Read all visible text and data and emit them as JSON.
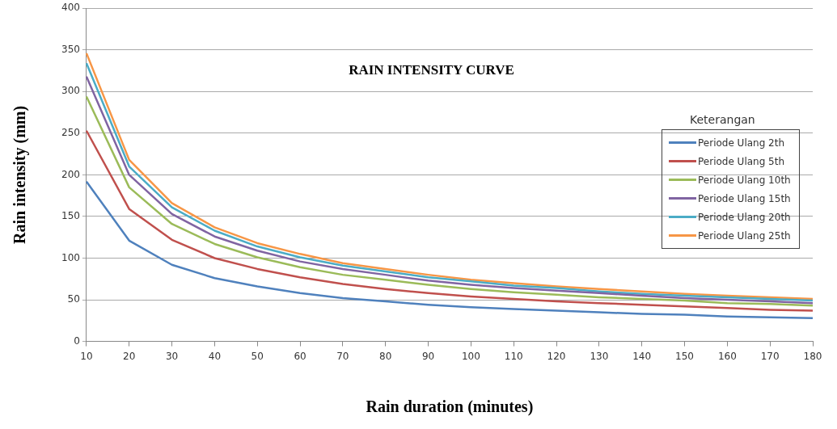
{
  "chart_data": {
    "type": "line",
    "title": "RAIN INTENSITY CURVE",
    "xlabel": "Rain duration (minutes)",
    "ylabel": "Rain intensity (mm)",
    "legend_title": "Keterangan",
    "legend": "right",
    "grid": "y",
    "marker": "none",
    "line_style": "solid",
    "categories": [
      "10",
      "20",
      "30",
      "40",
      "50",
      "60",
      "70",
      "80",
      "90",
      "100",
      "110",
      "120",
      "130",
      "140",
      "150",
      "160",
      "170",
      "180"
    ],
    "ylim": [
      0,
      400
    ],
    "yticks": [
      0,
      50,
      100,
      150,
      200,
      250,
      300,
      350,
      400
    ],
    "series": [
      {
        "name": "Periode Ulang 2th",
        "color": "#4f81bd",
        "values": [
          192,
          121,
          92,
          76,
          66,
          58,
          52,
          48,
          44,
          41,
          39,
          37,
          35,
          33,
          32,
          30,
          29,
          28
        ]
      },
      {
        "name": "Periode Ulang 5th",
        "color": "#c0504d",
        "values": [
          253,
          159,
          122,
          100,
          87,
          77,
          69,
          63,
          58,
          54,
          51,
          48,
          46,
          44,
          42,
          40,
          38,
          37
        ]
      },
      {
        "name": "Periode Ulang 10th",
        "color": "#9bbb59",
        "values": [
          294,
          185,
          141,
          117,
          101,
          89,
          80,
          74,
          68,
          63,
          59,
          56,
          53,
          51,
          49,
          46,
          45,
          43
        ]
      },
      {
        "name": "Periode Ulang 15th",
        "color": "#8064a2",
        "values": [
          318,
          200,
          153,
          126,
          109,
          96,
          87,
          80,
          73,
          68,
          64,
          61,
          58,
          55,
          52,
          50,
          48,
          46
        ]
      },
      {
        "name": "Periode Ulang 20th",
        "color": "#4bacc6",
        "values": [
          334,
          210,
          161,
          133,
          114,
          101,
          91,
          84,
          77,
          72,
          67,
          64,
          60,
          57,
          55,
          53,
          51,
          49
        ]
      },
      {
        "name": "Periode Ulang 25th",
        "color": "#f79646",
        "values": [
          346,
          218,
          166,
          137,
          118,
          105,
          94,
          87,
          80,
          74,
          70,
          66,
          63,
          60,
          57,
          55,
          53,
          51
        ]
      }
    ]
  }
}
